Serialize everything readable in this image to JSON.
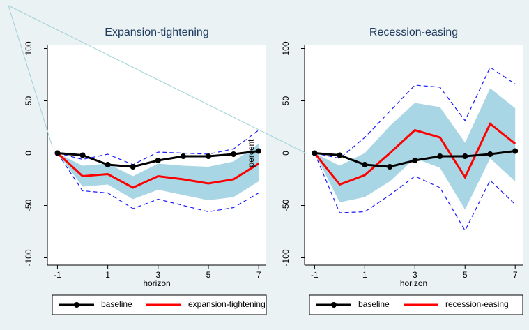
{
  "chart_data": [
    {
      "type": "line",
      "title": "Expansion-tightening",
      "x_label": "horizon",
      "x": [
        -1,
        0,
        1,
        2,
        3,
        4,
        5,
        6,
        7
      ],
      "xlim": [
        -1.4,
        7.3
      ],
      "xticks": [
        -1,
        1,
        3,
        5,
        7
      ],
      "ylim": [
        -107,
        103
      ],
      "yticks": [
        -100,
        -50,
        0,
        50,
        100
      ],
      "yline": 0,
      "band": {
        "color": "#a9d6e5",
        "upper": [
          0,
          -12,
          -10,
          -22,
          -10,
          -12,
          -13,
          -8,
          9
        ],
        "lower": [
          0,
          -32,
          -30,
          -44,
          -35,
          -40,
          -45,
          -42,
          -27
        ]
      },
      "dashed": {
        "color": "#1a1aff",
        "upper": [
          0,
          -6,
          -1,
          -11,
          1,
          0,
          -1,
          4,
          22
        ],
        "lower": [
          0,
          -36,
          -38,
          -53,
          -44,
          -50,
          -56,
          -52,
          -38
        ]
      },
      "series": [
        {
          "name": "baseline",
          "color": "#000000",
          "markers": true,
          "values": [
            0,
            -2,
            -11,
            -13,
            -7,
            -3,
            -3,
            -1,
            2
          ]
        },
        {
          "name": "expansion-tightening",
          "color": "#ff0000",
          "markers": false,
          "values": [
            0,
            -22,
            -20,
            -33,
            -22,
            -25,
            -29,
            -25,
            -10
          ]
        }
      ]
    },
    {
      "type": "line",
      "title": "Recession-easing",
      "x_label": "horizon",
      "y_label": "percent",
      "x": [
        -1,
        0,
        1,
        2,
        3,
        4,
        5,
        6,
        7
      ],
      "xlim": [
        -1.4,
        7.3
      ],
      "xticks": [
        -1,
        1,
        3,
        5,
        7
      ],
      "ylim": [
        -107,
        103
      ],
      "yticks": [
        -100,
        -50,
        0,
        50,
        100
      ],
      "yline": 0,
      "band": {
        "color": "#a9d6e5",
        "upper": [
          0,
          -12,
          0,
          26,
          48,
          44,
          10,
          62,
          43
        ],
        "lower": [
          0,
          -47,
          -42,
          -27,
          -5,
          -14,
          -54,
          -5,
          -27
        ]
      },
      "dashed": {
        "color": "#1a1aff",
        "upper": [
          0,
          -5,
          15,
          40,
          65,
          63,
          31,
          82,
          66
        ],
        "lower": [
          0,
          -57,
          -56,
          -40,
          -22,
          -33,
          -74,
          -26,
          -49
        ]
      },
      "series": [
        {
          "name": "baseline",
          "color": "#000000",
          "markers": true,
          "values": [
            0,
            -2,
            -11,
            -13,
            -7,
            -3,
            -3,
            -1,
            2
          ]
        },
        {
          "name": "recession-easing",
          "color": "#ff0000",
          "markers": false,
          "values": [
            0,
            -30,
            -21,
            0,
            22,
            15,
            -23,
            28,
            9
          ]
        }
      ]
    }
  ]
}
